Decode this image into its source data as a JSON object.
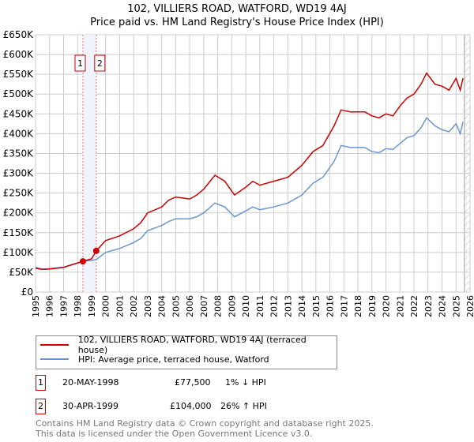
{
  "chart_data": {
    "type": "line",
    "title": "102, VILLIERS ROAD, WATFORD, WD19 4AJ",
    "subtitle": "Price paid vs. HM Land Registry's House Price Index (HPI)",
    "xlim": [
      1995,
      2026
    ],
    "ylim": [
      0,
      650000
    ],
    "x_ticks": [
      "1995",
      "1996",
      "1997",
      "1998",
      "1999",
      "2000",
      "2001",
      "2002",
      "2003",
      "2004",
      "2005",
      "2006",
      "2007",
      "2008",
      "2009",
      "2010",
      "2011",
      "2012",
      "2013",
      "2014",
      "2015",
      "2016",
      "2017",
      "2018",
      "2019",
      "2020",
      "2021",
      "2022",
      "2023",
      "2024",
      "2025",
      "2026"
    ],
    "y_ticks": [
      {
        "v": 0,
        "l": "£0"
      },
      {
        "v": 50000,
        "l": "£50K"
      },
      {
        "v": 100000,
        "l": "£100K"
      },
      {
        "v": 150000,
        "l": "£150K"
      },
      {
        "v": 200000,
        "l": "£200K"
      },
      {
        "v": 250000,
        "l": "£250K"
      },
      {
        "v": 300000,
        "l": "£300K"
      },
      {
        "v": 350000,
        "l": "£350K"
      },
      {
        "v": 400000,
        "l": "£400K"
      },
      {
        "v": 450000,
        "l": "£450K"
      },
      {
        "v": 500000,
        "l": "£500K"
      },
      {
        "v": 550000,
        "l": "£550K"
      },
      {
        "v": 600000,
        "l": "£600K"
      },
      {
        "v": 650000,
        "l": "£650K"
      }
    ],
    "grid": true,
    "series": [
      {
        "name": "102, VILLIERS ROAD, WATFORD, WD19 4AJ (terraced house)",
        "color": "#cc0000",
        "x": [
          1995,
          1995.5,
          1996,
          1997,
          1997.5,
          1998.38,
          1999.0,
          1999.33,
          2000,
          2001,
          2002,
          2002.5,
          2003,
          2004,
          2004.5,
          2005,
          2006,
          2006.5,
          2007,
          2007.8,
          2008.5,
          2009.2,
          2010,
          2010.5,
          2011,
          2012,
          2013,
          2014,
          2014.8,
          2015.5,
          2016.3,
          2016.8,
          2017.5,
          2018.5,
          2019,
          2019.5,
          2020,
          2020.5,
          2021,
          2021.5,
          2022,
          2022.5,
          2022.9,
          2023.5,
          2024,
          2024.5,
          2025,
          2025.3,
          2025.5
        ],
        "y": [
          60000,
          57000,
          58000,
          62000,
          68000,
          77500,
          84000,
          104000,
          130000,
          142000,
          160000,
          175000,
          200000,
          215000,
          232000,
          240000,
          235000,
          245000,
          260000,
          295000,
          280000,
          245000,
          265000,
          280000,
          270000,
          280000,
          290000,
          320000,
          355000,
          370000,
          420000,
          460000,
          455000,
          455000,
          445000,
          440000,
          450000,
          445000,
          470000,
          490000,
          500000,
          525000,
          553000,
          525000,
          520000,
          510000,
          540000,
          510000,
          540000
        ]
      },
      {
        "name": "HPI: Average price, terraced house, Watford",
        "color": "#6a96d0",
        "x": [
          1995,
          1995.5,
          1996,
          1997,
          1997.5,
          1998.38,
          1999.0,
          1999.33,
          2000,
          2001,
          2002,
          2002.5,
          2003,
          2004,
          2004.5,
          2005,
          2006,
          2006.5,
          2007,
          2007.8,
          2008.5,
          2009.2,
          2010,
          2010.5,
          2011,
          2012,
          2013,
          2014,
          2014.8,
          2015.5,
          2016.3,
          2016.8,
          2017.5,
          2018.5,
          2019,
          2019.5,
          2020,
          2020.5,
          2021,
          2021.5,
          2022,
          2022.5,
          2022.9,
          2023.5,
          2024,
          2024.5,
          2025,
          2025.3,
          2025.5
        ],
        "y": [
          62000,
          58000,
          59000,
          63000,
          68000,
          78000,
          80000,
          82000,
          100000,
          110000,
          125000,
          135000,
          155000,
          168000,
          178000,
          185000,
          185000,
          190000,
          200000,
          225000,
          215000,
          190000,
          205000,
          215000,
          208000,
          215000,
          225000,
          245000,
          275000,
          290000,
          330000,
          370000,
          365000,
          365000,
          355000,
          352000,
          362000,
          360000,
          375000,
          390000,
          395000,
          415000,
          440000,
          420000,
          410000,
          405000,
          425000,
          400000,
          430000
        ]
      }
    ],
    "sales": [
      {
        "id": "1",
        "date": "20-MAY-1998",
        "x": 1998.38,
        "price": "£77,500",
        "value": 77500,
        "hpi": "1% ↓ HPI"
      },
      {
        "id": "2",
        "date": "30-APR-1999",
        "x": 1999.33,
        "price": "£104,000",
        "value": 104000,
        "hpi": "26% ↑ HPI"
      }
    ],
    "forecast_start": 2025.6
  },
  "footer": {
    "line1": "Contains HM Land Registry data © Crown copyright and database right 2025.",
    "line2": "This data is licensed under the Open Government Licence v3.0."
  }
}
